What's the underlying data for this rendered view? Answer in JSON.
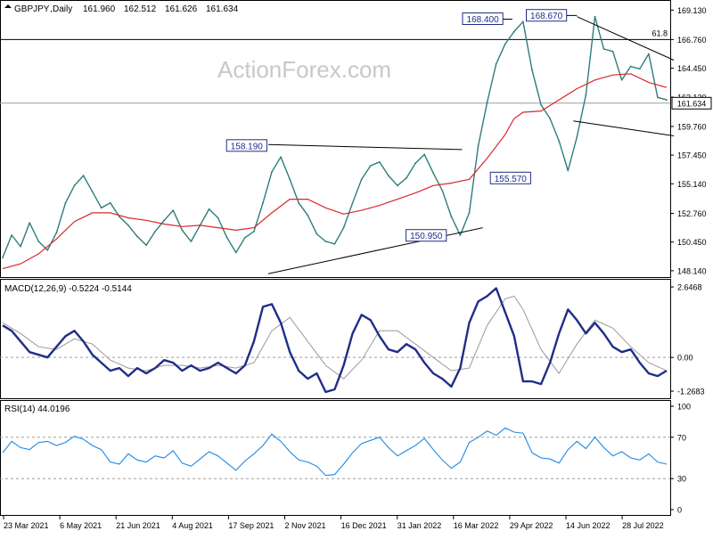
{
  "header": {
    "symbol": "GBPJPY",
    "timeframe": "Daily",
    "open": "161.960",
    "high": "162.512",
    "low": "161.626",
    "close": "161.634"
  },
  "watermark": "ActionForex.com",
  "colors": {
    "price": "#2e7d7b",
    "ma": "#d9262a",
    "macd": "#1f2e86",
    "signal": "#9a9a9a",
    "rsi": "#1e88e5",
    "label_border": "#1f2e86",
    "guide": "#9e9e9e"
  },
  "chart_data": [
    {
      "type": "line",
      "panel": "price",
      "ylim": [
        147.7,
        169.8
      ],
      "y_ticks": [
        "169.130",
        "166.760",
        "164.450",
        "162.120",
        "159.760",
        "157.450",
        "155.140",
        "152.760",
        "150.450",
        "148.140"
      ],
      "last_price": "161.634",
      "fib_label": "61.8",
      "fib_level": 166.76,
      "horizontal_level": 161.634,
      "annotations": [
        {
          "text": "168.400",
          "value": 168.4
        },
        {
          "text": "168.670",
          "value": 168.67
        },
        {
          "text": "158.190",
          "value": 158.19
        },
        {
          "text": "155.570",
          "value": 155.57
        },
        {
          "text": "150.950",
          "value": 150.95
        }
      ],
      "series": [
        {
          "kind": "price",
          "x": [
            0,
            10,
            20,
            30,
            40,
            50,
            60,
            70,
            80,
            90,
            100,
            110,
            120,
            130,
            140,
            150,
            160,
            170,
            180,
            190,
            200,
            210,
            220,
            230,
            240,
            250,
            260,
            270,
            280,
            290,
            300,
            310,
            320,
            330,
            340,
            350,
            360,
            370,
            380,
            390,
            400,
            410,
            420,
            430,
            440,
            450,
            460,
            470,
            480,
            490,
            500,
            510,
            520,
            530,
            540,
            550,
            560,
            570,
            580,
            590,
            600,
            610,
            620,
            630,
            640,
            650,
            660,
            670,
            680,
            690,
            700,
            710,
            720,
            730,
            740
          ],
          "values": [
            149.2,
            151.0,
            150.1,
            152.0,
            150.5,
            149.8,
            151.2,
            153.6,
            155.0,
            155.8,
            154.5,
            153.2,
            153.6,
            152.5,
            151.8,
            150.9,
            150.2,
            151.3,
            152.2,
            153.0,
            151.4,
            150.5,
            151.8,
            153.1,
            152.4,
            150.8,
            149.6,
            150.8,
            151.3,
            153.6,
            156.1,
            157.3,
            155.5,
            153.6,
            152.6,
            151.1,
            150.5,
            150.3,
            151.6,
            153.6,
            155.5,
            156.6,
            156.9,
            155.8,
            155.0,
            155.6,
            156.8,
            157.5,
            156.0,
            154.6,
            152.5,
            151.0,
            152.8,
            158.2,
            161.7,
            164.8,
            166.4,
            167.4,
            168.2,
            164.3,
            161.5,
            160.4,
            158.6,
            156.2,
            158.9,
            162.3,
            168.6,
            166.0,
            165.8,
            163.5,
            164.6,
            164.4,
            165.6,
            162.1,
            161.9
          ]
        },
        {
          "kind": "moving-average",
          "x": [
            0,
            20,
            40,
            60,
            80,
            100,
            120,
            140,
            160,
            180,
            200,
            220,
            240,
            260,
            280,
            300,
            320,
            340,
            360,
            380,
            400,
            420,
            440,
            460,
            480,
            500,
            520,
            540,
            560,
            570,
            580,
            600,
            620,
            640,
            660,
            680,
            700,
            720,
            740
          ],
          "values": [
            148.3,
            148.7,
            149.5,
            150.7,
            152.1,
            152.8,
            152.8,
            152.4,
            152.2,
            151.9,
            151.7,
            151.8,
            151.6,
            151.4,
            151.6,
            152.8,
            153.9,
            153.9,
            153.2,
            152.7,
            153.0,
            153.4,
            153.9,
            154.4,
            155.0,
            155.2,
            155.5,
            157.2,
            159.1,
            160.4,
            160.9,
            161.0,
            161.9,
            162.8,
            163.5,
            163.9,
            164.0,
            163.3,
            162.9
          ]
        }
      ]
    },
    {
      "type": "line",
      "panel": "macd",
      "title": "MACD(12,26,9) -0.5224 -0.5144",
      "ylim": [
        -1.5,
        2.85
      ],
      "y_ticks": [
        "2.6468",
        "0.00",
        "-1.2683"
      ],
      "series": [
        {
          "kind": "macd",
          "x": [
            0,
            10,
            20,
            30,
            40,
            50,
            60,
            70,
            80,
            90,
            100,
            110,
            120,
            130,
            140,
            150,
            160,
            170,
            180,
            190,
            200,
            210,
            220,
            230,
            240,
            250,
            260,
            270,
            280,
            290,
            300,
            310,
            320,
            330,
            340,
            350,
            360,
            370,
            380,
            390,
            400,
            410,
            420,
            430,
            440,
            450,
            460,
            470,
            480,
            490,
            500,
            510,
            520,
            530,
            540,
            550,
            560,
            570,
            580,
            590,
            600,
            610,
            620,
            630,
            640,
            650,
            660,
            670,
            680,
            690,
            700,
            710,
            720,
            730,
            740
          ],
          "values": [
            1.2,
            1.0,
            0.6,
            0.2,
            0.1,
            0.0,
            0.4,
            0.8,
            1.0,
            0.6,
            0.1,
            -0.2,
            -0.5,
            -0.4,
            -0.7,
            -0.4,
            -0.6,
            -0.4,
            -0.1,
            -0.2,
            -0.5,
            -0.3,
            -0.5,
            -0.4,
            -0.2,
            -0.4,
            -0.6,
            -0.3,
            0.6,
            1.9,
            2.0,
            1.3,
            0.2,
            -0.5,
            -0.8,
            -0.6,
            -1.3,
            -1.2,
            -0.3,
            0.9,
            1.6,
            1.4,
            0.8,
            0.3,
            0.2,
            0.5,
            0.3,
            -0.2,
            -0.6,
            -0.8,
            -1.1,
            -0.4,
            1.3,
            2.1,
            2.3,
            2.6,
            1.7,
            0.8,
            -0.9,
            -0.9,
            -1.0,
            -0.2,
            0.9,
            1.8,
            1.4,
            0.9,
            1.3,
            0.9,
            0.4,
            0.2,
            0.3,
            -0.2,
            -0.6,
            -0.7,
            -0.5
          ]
        },
        {
          "kind": "signal",
          "x": [
            0,
            20,
            40,
            60,
            80,
            100,
            120,
            140,
            160,
            180,
            200,
            220,
            240,
            260,
            280,
            300,
            320,
            340,
            360,
            380,
            400,
            420,
            440,
            460,
            480,
            500,
            520,
            540,
            560,
            570,
            580,
            600,
            620,
            640,
            660,
            680,
            700,
            720,
            740
          ],
          "values": [
            1.3,
            0.9,
            0.4,
            0.3,
            0.7,
            0.5,
            -0.1,
            -0.4,
            -0.5,
            -0.3,
            -0.3,
            -0.4,
            -0.3,
            -0.4,
            -0.2,
            1.0,
            1.5,
            0.6,
            -0.3,
            -0.8,
            -0.1,
            1.0,
            1.0,
            0.5,
            0.0,
            -0.5,
            -0.4,
            1.2,
            2.2,
            2.3,
            1.8,
            0.3,
            -0.6,
            0.5,
            1.4,
            1.1,
            0.4,
            -0.2,
            -0.5
          ]
        }
      ]
    },
    {
      "type": "line",
      "panel": "rsi",
      "title": "RSI(14) 44.0196",
      "ylim": [
        0,
        100
      ],
      "y_ticks": [
        "100",
        "70",
        "30",
        "0"
      ],
      "levels": [
        70,
        30
      ],
      "series": [
        {
          "kind": "rsi",
          "x": [
            0,
            10,
            20,
            30,
            40,
            50,
            60,
            70,
            80,
            90,
            100,
            110,
            120,
            130,
            140,
            150,
            160,
            170,
            180,
            190,
            200,
            210,
            220,
            230,
            240,
            250,
            260,
            270,
            280,
            290,
            300,
            310,
            320,
            330,
            340,
            350,
            360,
            370,
            380,
            390,
            400,
            410,
            420,
            430,
            440,
            450,
            460,
            470,
            480,
            490,
            500,
            510,
            520,
            530,
            540,
            550,
            560,
            570,
            580,
            590,
            600,
            610,
            620,
            630,
            640,
            650,
            660,
            670,
            680,
            690,
            700,
            710,
            720,
            730,
            740
          ],
          "values": [
            55,
            66,
            60,
            58,
            65,
            66,
            62,
            65,
            71,
            68,
            62,
            58,
            46,
            44,
            54,
            48,
            46,
            52,
            50,
            57,
            45,
            42,
            49,
            56,
            52,
            45,
            38,
            47,
            54,
            62,
            73,
            66,
            56,
            48,
            46,
            42,
            33,
            34,
            44,
            55,
            64,
            67,
            70,
            60,
            52,
            57,
            62,
            69,
            58,
            48,
            40,
            46,
            65,
            70,
            76,
            72,
            79,
            75,
            74,
            55,
            50,
            49,
            45,
            58,
            66,
            59,
            70,
            60,
            52,
            56,
            50,
            48,
            54,
            46,
            44
          ]
        }
      ]
    }
  ],
  "x_axis": {
    "labels": [
      "23 Mar 2021",
      "6 May 2021",
      "21 Jun 2021",
      "4 Aug 2021",
      "17 Sep 2021",
      "2 Nov 2021",
      "16 Dec 2021",
      "31 Jan 2022",
      "16 Mar 2022",
      "29 Apr 2022",
      "14 Jun 2022",
      "28 Jul 2022"
    ]
  }
}
